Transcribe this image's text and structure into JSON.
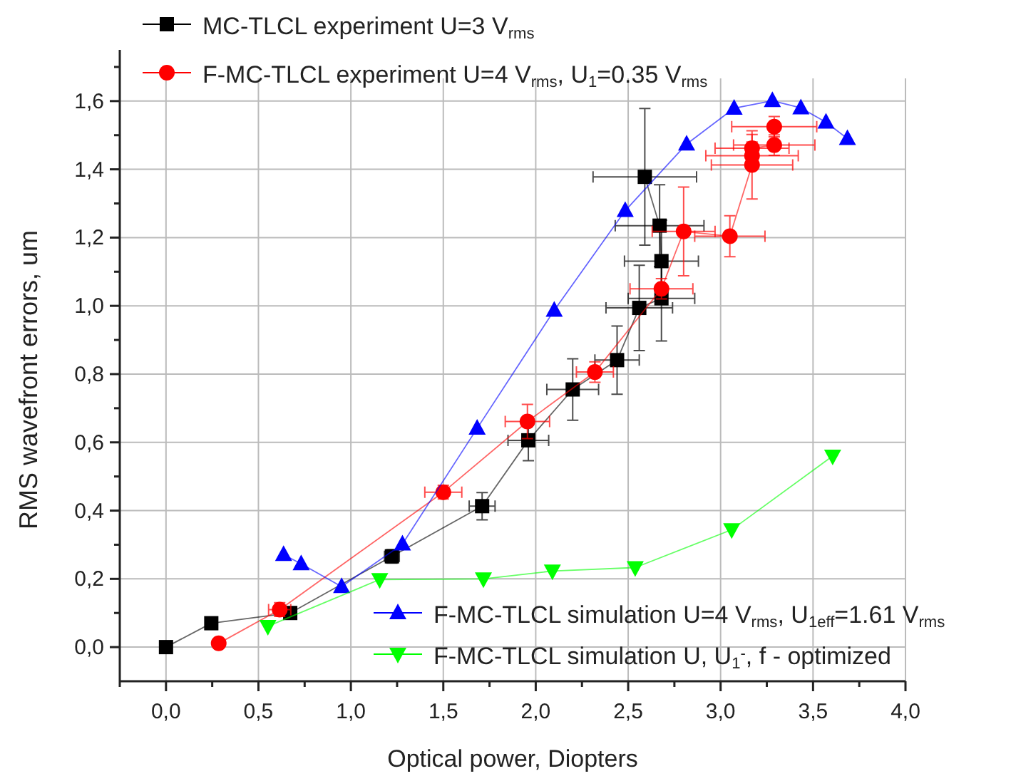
{
  "chart_data": {
    "type": "line",
    "xlabel": "Optical power, Diopters",
    "ylabel": "RMS wavefront errors, um",
    "xlim": [
      -0.25,
      4.0
    ],
    "ylim": [
      -0.1,
      1.75
    ],
    "xticks": [
      {
        "value": 0,
        "label": "0,0"
      },
      {
        "value": 0.5,
        "label": "0,5"
      },
      {
        "value": 1,
        "label": "1,0"
      },
      {
        "value": 1.5,
        "label": "1,5"
      },
      {
        "value": 2,
        "label": "2,0"
      },
      {
        "value": 2.5,
        "label": "2,5"
      },
      {
        "value": 3,
        "label": "3,0"
      },
      {
        "value": 3.5,
        "label": "3,5"
      },
      {
        "value": 4,
        "label": "4,0"
      }
    ],
    "yticks": [
      {
        "value": 0,
        "label": "0,0"
      },
      {
        "value": 0.2,
        "label": "0,2"
      },
      {
        "value": 0.4,
        "label": "0,4"
      },
      {
        "value": 0.6,
        "label": "0,6"
      },
      {
        "value": 0.8,
        "label": "0,8"
      },
      {
        "value": 1,
        "label": "1,0"
      },
      {
        "value": 1.2,
        "label": "1,2"
      },
      {
        "value": 1.4,
        "label": "1,4"
      },
      {
        "value": 1.6,
        "label": "1,6"
      }
    ],
    "grid": true,
    "legend": "top left",
    "line_style": "solid",
    "series": [
      {
        "name": "MC-TLCL experiment U=3 V$_{rms}$",
        "color": "#000000",
        "marker": "square",
        "x": [
          0,
          0.245,
          0.672,
          1.222,
          1.71,
          1.96,
          2.2,
          2.44,
          2.56,
          2.68,
          2.68,
          2.67,
          2.59
        ],
        "values": [
          0,
          0.07,
          0.1,
          0.266,
          0.413,
          0.606,
          0.755,
          0.841,
          0.994,
          1.022,
          1.131,
          1.235,
          1.378
        ],
        "errors": [
          null,
          null,
          null,
          0.02,
          0.04,
          0.06,
          0.09,
          0.1,
          0.125,
          0.125,
          0.12,
          0.12,
          0.2
        ],
        "xerrors": [
          null,
          null,
          null,
          0.04,
          0.07,
          0.11,
          0.14,
          0.12,
          0.18,
          0.18,
          0.2,
          0.24,
          0.28
        ]
      },
      {
        "name": "F-MC-TLCL experiment U=4 V$_{rms}$, U$_{1}$=0.35 V$_{rms}$",
        "color": "#ff0000",
        "marker": "circle",
        "x": [
          0.285,
          0.615,
          1.5,
          1.955,
          2.32,
          2.68,
          2.8,
          3.05,
          3.17,
          3.17,
          3.17,
          3.29,
          3.29
        ],
        "values": [
          0.011,
          0.11,
          0.454,
          0.661,
          0.806,
          1.05,
          1.218,
          1.204,
          1.413,
          1.44,
          1.462,
          1.471,
          1.525
        ],
        "errors": [
          null,
          0.02,
          0.02,
          0.05,
          0.03,
          0.03,
          0.13,
          0.06,
          0.1,
          0.04,
          0.04,
          0.03,
          0.03
        ],
        "xerrors": [
          null,
          0.06,
          0.1,
          0.12,
          0.1,
          0.17,
          0.17,
          0.19,
          0.22,
          0.25,
          0.2,
          0.22,
          0.23
        ]
      },
      {
        "name": "F-MC-TLCL simulation U=4 V$_{rms}$, U$_{1eff}$=1.61 V$_{rms}$",
        "color": "#0000ff",
        "marker": "triangle",
        "x": [
          0.636,
          0.731,
          0.95,
          1.279,
          1.683,
          2.1,
          2.484,
          2.816,
          3.073,
          3.28,
          3.434,
          3.57,
          3.686
        ],
        "values": [
          0.271,
          0.244,
          0.177,
          0.302,
          0.641,
          0.987,
          1.279,
          1.474,
          1.579,
          1.601,
          1.58,
          1.538,
          1.49
        ]
      },
      {
        "name": "F-MC-TLCL simulation U, U$_{1}$$^{-}$, f - optimized",
        "color": "#00ff00",
        "marker": "triangle-down",
        "x": [
          0.551,
          1.156,
          1.717,
          2.09,
          2.538,
          3.06,
          3.606
        ],
        "values": [
          0.061,
          0.198,
          0.2,
          0.223,
          0.233,
          0.344,
          0.56
        ]
      }
    ]
  }
}
